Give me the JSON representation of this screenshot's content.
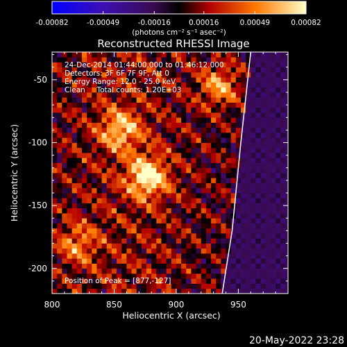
{
  "chart_data": {
    "type": "heatmap",
    "title": "Reconstructed RHESSI Image",
    "xlabel": "Heliocentric X (arcsec)",
    "ylabel": "Heliocentric Y (arcsec)",
    "xlim": [
      800,
      990
    ],
    "ylim": [
      -220,
      -28
    ],
    "xticks": [
      800,
      850,
      900,
      950
    ],
    "yticks": [
      -50,
      -100,
      -150,
      -200
    ],
    "colorbar": {
      "ticks": [
        "-0.00082",
        "-0.00049",
        "-0.00016",
        "0.00016",
        "0.00049",
        "0.00082"
      ],
      "units": "(photons cm⁻² s⁻¹ asec⁻²)",
      "range": [
        -0.00082,
        0.00082
      ],
      "colors": [
        "#0000ff",
        "#5a0a8c",
        "#000000",
        "#b40000",
        "#ff7800",
        "#ffff96"
      ]
    },
    "annotations": [
      "24-Dec-2014 01:44:00.000 to 01:46:12.000",
      "Detectors: 3F 6F 7F 9F, Att 0",
      "Energy Range: 12.0 - 25.0 keV",
      "Clean     Total counts: 1.20E+03"
    ],
    "peak_label": "Position of Peak = [877,-127]",
    "peak": [
      877,
      -127
    ],
    "sources": [
      {
        "x": 877,
        "y": -127,
        "amplitude": 1.0
      },
      {
        "x": 855,
        "y": -90,
        "amplitude": 0.75
      },
      {
        "x": 935,
        "y": -55,
        "amplitude": 0.7
      },
      {
        "x": 820,
        "y": -180,
        "amplitude": 0.55
      }
    ],
    "limb_arc_points": [
      [
        960,
        -28
      ],
      [
        952,
        -100
      ],
      [
        945,
        -170
      ],
      [
        937,
        -220
      ]
    ]
  },
  "footer": {
    "date": "20-May-2022 23:28"
  }
}
